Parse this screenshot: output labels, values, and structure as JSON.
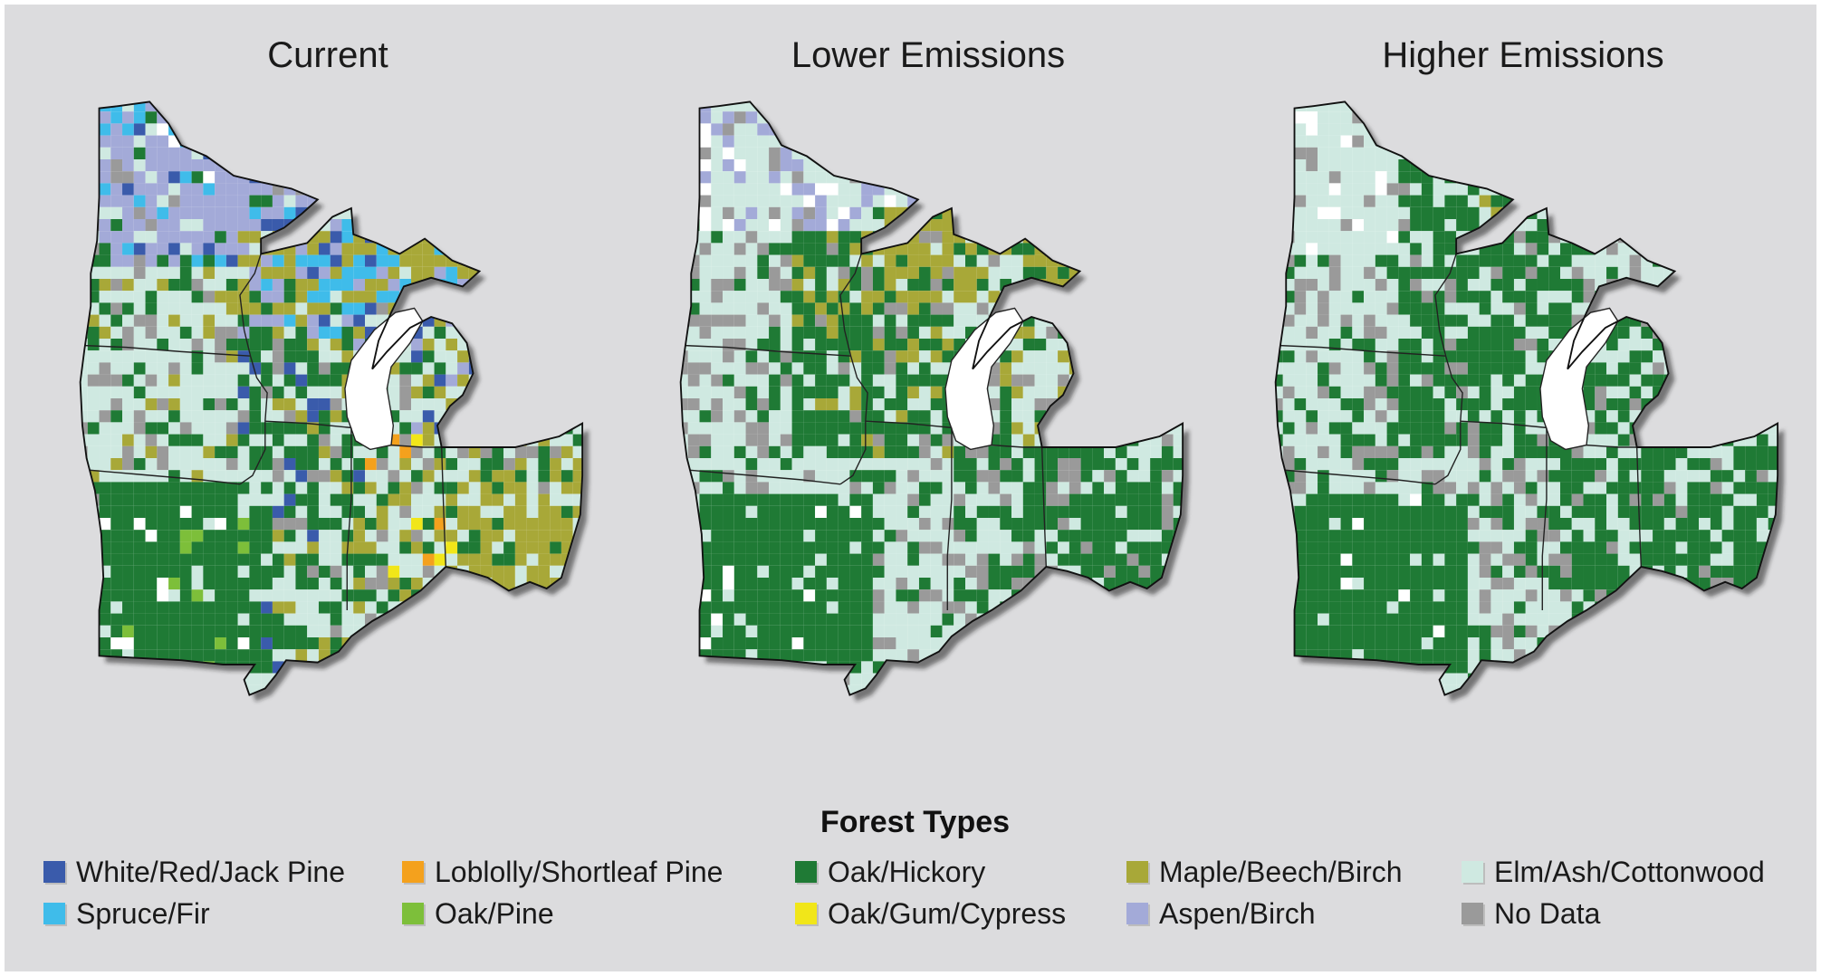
{
  "maps": [
    {
      "id": "current",
      "title": "Current"
    },
    {
      "id": "lower",
      "title": "Lower Emissions"
    },
    {
      "id": "higher",
      "title": "Higher Emissions"
    }
  ],
  "legend": {
    "title": "Forest Types",
    "items": [
      {
        "label": "White/Red/Jack Pine",
        "color": "#3a5bab"
      },
      {
        "label": "Loblolly/Shortleaf Pine",
        "color": "#f4a11d"
      },
      {
        "label": "Oak/Hickory",
        "color": "#1f7a35"
      },
      {
        "label": "Maple/Beech/Birch",
        "color": "#a8a838"
      },
      {
        "label": "Elm/Ash/Cottonwood",
        "color": "#cfe9e1"
      },
      {
        "label": "Spruce/Fir",
        "color": "#3fbcea"
      },
      {
        "label": "Oak/Pine",
        "color": "#7dbf3a"
      },
      {
        "label": "Oak/Gum/Cypress",
        "color": "#f1e619"
      },
      {
        "label": "Aspen/Birch",
        "color": "#a3aad8"
      },
      {
        "label": "No Data",
        "color": "#9a9a9a"
      }
    ]
  }
}
